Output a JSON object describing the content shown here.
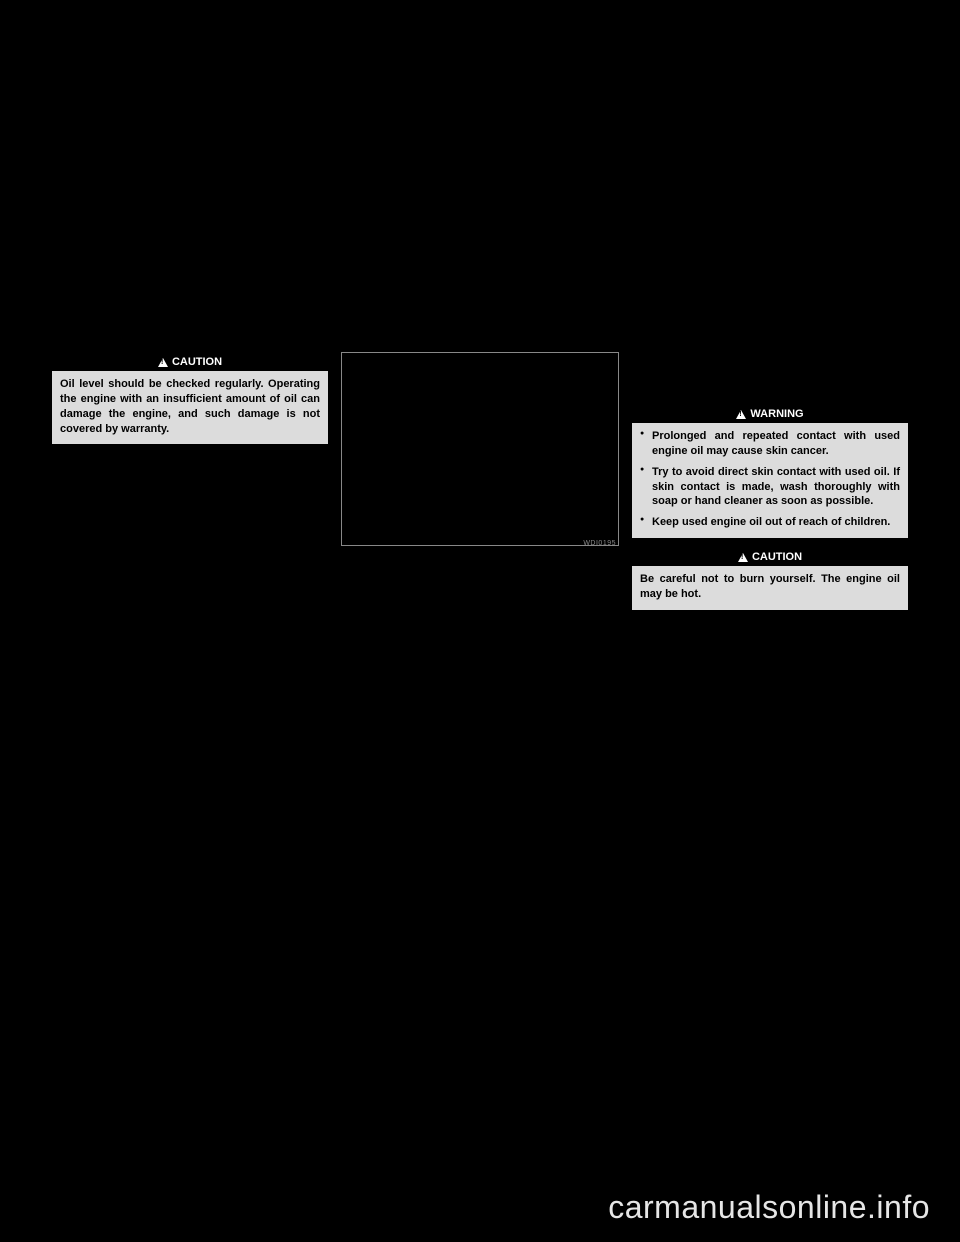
{
  "column1": {
    "caution": {
      "label": "CAUTION",
      "text": "Oil level should be checked regularly. Operating the engine with an insufficient amount of oil can damage the engine, and such damage is not covered by warranty."
    }
  },
  "column2": {
    "image_code": "WDI0195"
  },
  "column3": {
    "warning": {
      "label": "WARNING",
      "items": [
        "Prolonged and repeated contact with used engine oil may cause skin cancer.",
        "Try to avoid direct skin contact with used oil. If skin contact is made, wash thoroughly with soap or hand cleaner as soon as possible.",
        "Keep used engine oil out of reach of children."
      ]
    },
    "caution": {
      "label": "CAUTION",
      "text": "Be careful not to burn yourself. The engine oil may be hot."
    }
  },
  "watermark": "carmanualsonline.info"
}
